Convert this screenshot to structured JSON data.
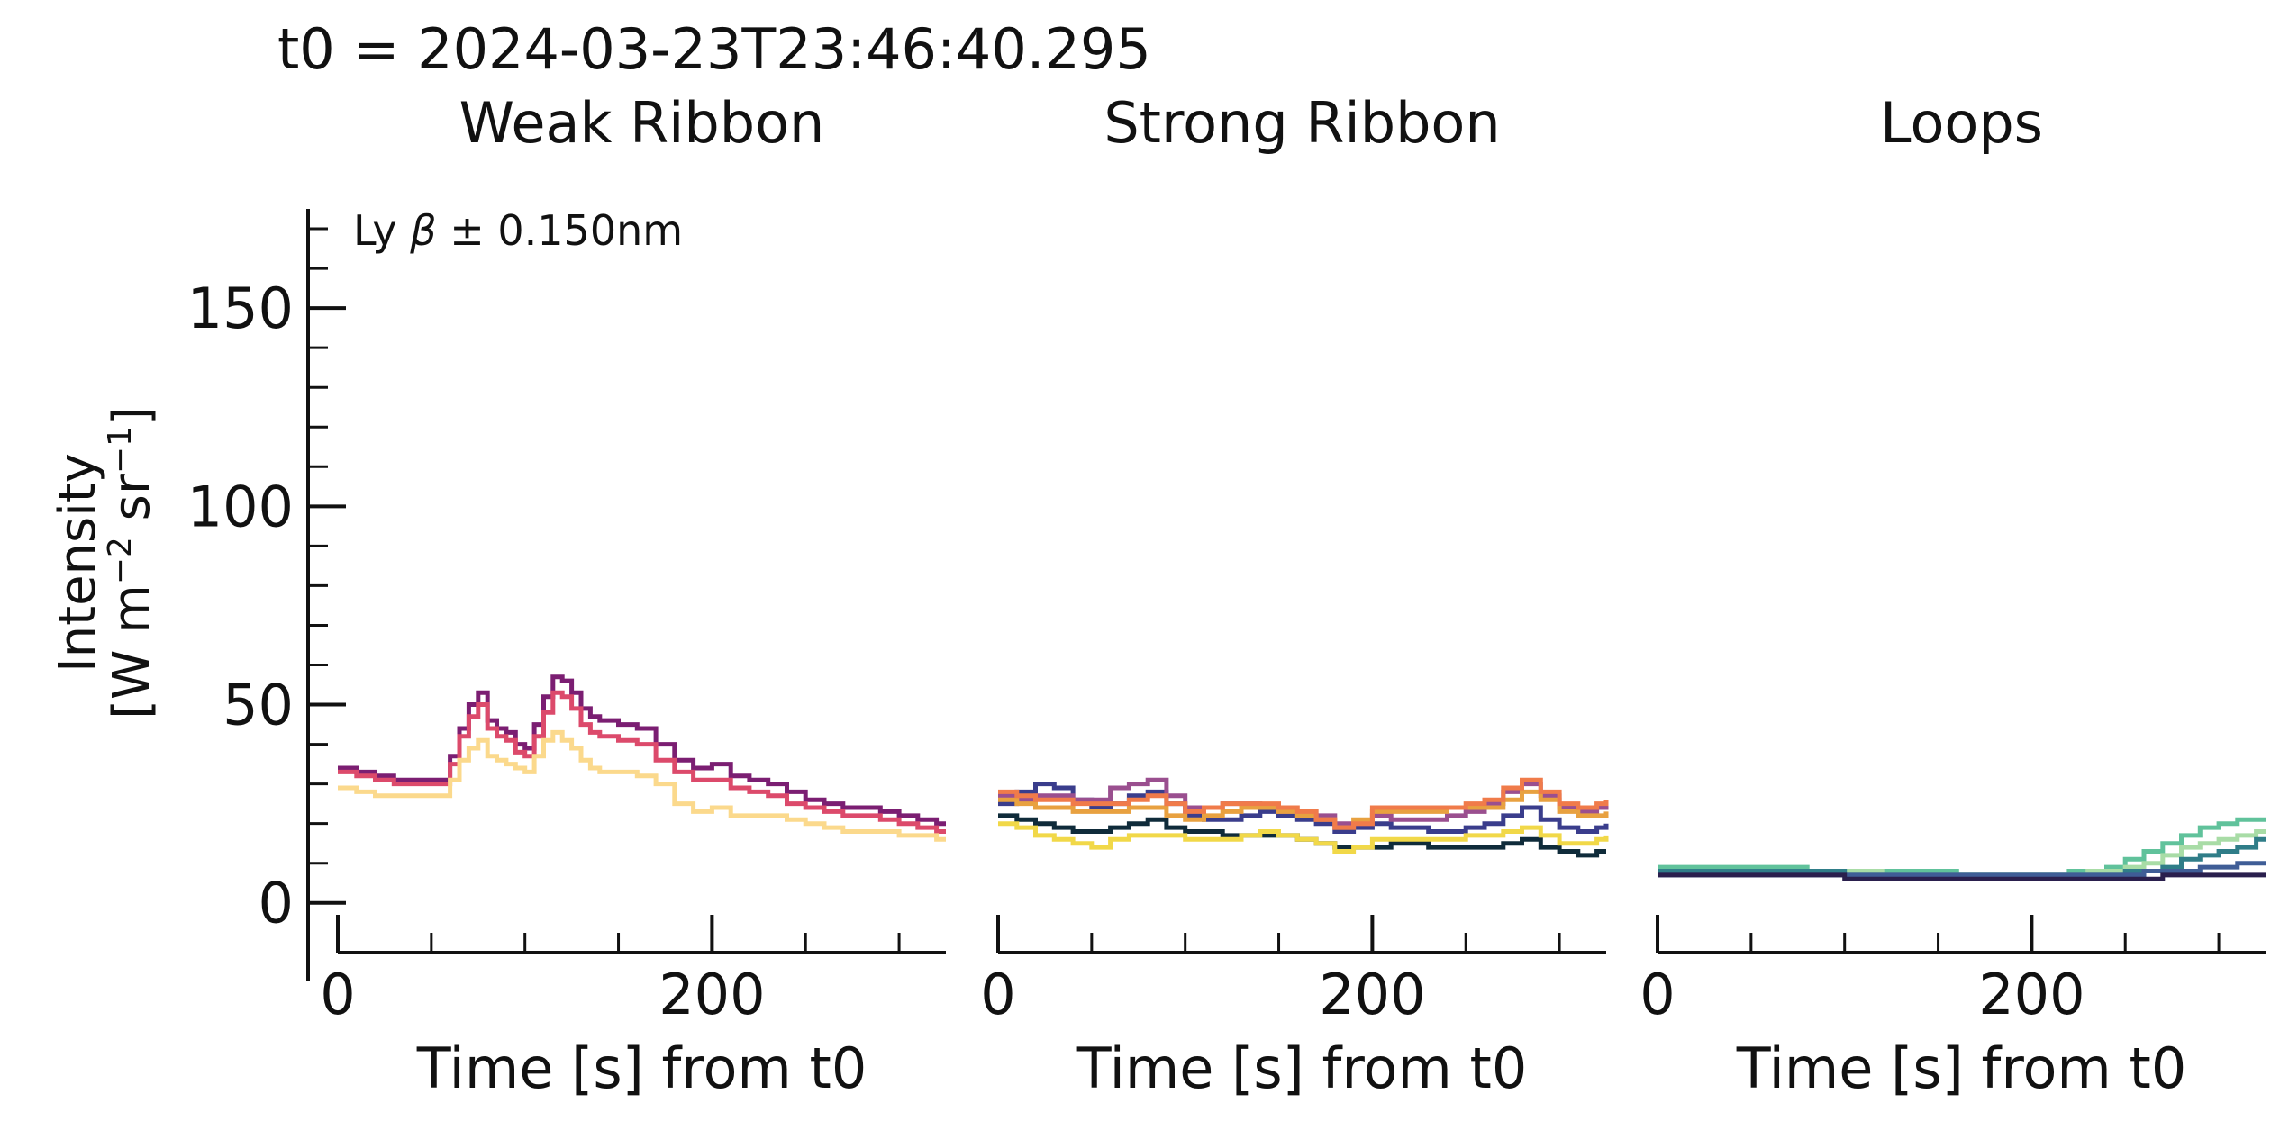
{
  "figure": {
    "title": "t0 = 2024-03-23T23:46:40.295",
    "ylabel_line1": "Intensity",
    "ylabel_line2_pre": "[W m",
    "ylabel_exp1": "−2",
    "ylabel_mid": " sr",
    "ylabel_exp2": "−1",
    "ylabel_post": "]",
    "annotation_pre": "Ly ",
    "annotation_beta": "β",
    "annotation_post": " ±  0.150nm"
  },
  "chart_data": [
    {
      "type": "line",
      "title": "Weak Ribbon",
      "xlabel": "Time [s] from t0",
      "ylabel": "Intensity [W m⁻² sr⁻¹]",
      "xlim": [
        0,
        325
      ],
      "ylim": [
        -13,
        175
      ],
      "xticks": [
        0,
        200
      ],
      "yticks": [
        0,
        50,
        100,
        150
      ],
      "grid": false,
      "x": [
        0,
        10,
        20,
        30,
        40,
        50,
        55,
        60,
        65,
        70,
        75,
        80,
        85,
        90,
        95,
        100,
        105,
        110,
        115,
        120,
        125,
        130,
        135,
        140,
        150,
        160,
        170,
        180,
        190,
        200,
        210,
        220,
        230,
        240,
        250,
        260,
        270,
        280,
        290,
        300,
        310,
        320,
        325
      ],
      "series": [
        {
          "color": "#7b1e72",
          "values": [
            34,
            33,
            32,
            31,
            31,
            31,
            31,
            37,
            44,
            50,
            53,
            46,
            44,
            43,
            40,
            39,
            45,
            52,
            57,
            56,
            53,
            49,
            47,
            46,
            45,
            44,
            40,
            36,
            34,
            35,
            32,
            31,
            30,
            28,
            26,
            25,
            24,
            24,
            23,
            22,
            21,
            20,
            20
          ]
        },
        {
          "color": "#dc4a6b",
          "values": [
            33,
            32,
            31,
            30,
            30,
            30,
            30,
            35,
            42,
            47,
            50,
            44,
            42,
            41,
            38,
            37,
            42,
            48,
            53,
            52,
            49,
            45,
            43,
            42,
            41,
            40,
            36,
            33,
            31,
            31,
            29,
            28,
            27,
            25,
            24,
            23,
            22,
            22,
            21,
            20,
            19,
            18,
            18
          ]
        },
        {
          "color": "#fbd98c",
          "values": [
            29,
            28,
            27,
            27,
            27,
            27,
            27,
            31,
            36,
            39,
            41,
            37,
            36,
            35,
            34,
            33,
            37,
            41,
            43,
            41,
            39,
            36,
            34,
            33,
            33,
            32,
            30,
            25,
            23,
            24,
            22,
            22,
            22,
            21,
            20,
            19,
            18,
            18,
            18,
            17,
            17,
            16,
            16
          ]
        }
      ]
    },
    {
      "type": "line",
      "title": "Strong Ribbon",
      "xlabel": "Time [s] from t0",
      "xlim": [
        0,
        325
      ],
      "ylim": [
        -13,
        175
      ],
      "xticks": [
        0,
        200
      ],
      "yticks": [
        0,
        50,
        100,
        150
      ],
      "grid": false,
      "x": [
        0,
        10,
        20,
        30,
        40,
        50,
        60,
        70,
        80,
        90,
        100,
        110,
        120,
        130,
        140,
        150,
        160,
        170,
        180,
        190,
        200,
        210,
        220,
        230,
        240,
        250,
        260,
        270,
        280,
        290,
        300,
        310,
        320,
        325
      ],
      "series": [
        {
          "color": "#0f2b3a",
          "values": [
            22,
            21,
            20,
            19,
            18,
            18,
            19,
            20,
            21,
            19,
            18,
            18,
            17,
            17,
            17,
            17,
            16,
            15,
            14,
            14,
            14,
            15,
            15,
            14,
            14,
            14,
            14,
            15,
            16,
            14,
            13,
            12,
            13,
            13
          ]
        },
        {
          "color": "#3a3d8c",
          "values": [
            25,
            28,
            30,
            29,
            26,
            24,
            25,
            27,
            28,
            25,
            22,
            21,
            21,
            22,
            23,
            22,
            21,
            20,
            18,
            19,
            20,
            19,
            19,
            18,
            18,
            19,
            20,
            22,
            24,
            21,
            19,
            18,
            19,
            20
          ]
        },
        {
          "color": "#9a4f8f",
          "values": [
            27,
            26,
            27,
            27,
            26,
            26,
            29,
            30,
            31,
            27,
            24,
            24,
            25,
            25,
            24,
            23,
            23,
            22,
            20,
            20,
            22,
            21,
            21,
            21,
            22,
            23,
            25,
            28,
            30,
            27,
            24,
            23,
            24,
            25
          ]
        },
        {
          "color": "#e8a140",
          "values": [
            26,
            25,
            24,
            24,
            23,
            23,
            23,
            24,
            24,
            22,
            21,
            22,
            23,
            24,
            24,
            23,
            22,
            21,
            19,
            21,
            23,
            23,
            23,
            23,
            24,
            24,
            24,
            26,
            28,
            26,
            23,
            22,
            22,
            23
          ]
        },
        {
          "color": "#f07b4a",
          "values": [
            28,
            27,
            26,
            26,
            25,
            25,
            25,
            26,
            27,
            25,
            23,
            24,
            25,
            25,
            25,
            24,
            23,
            21,
            19,
            20,
            24,
            24,
            24,
            24,
            24,
            25,
            26,
            29,
            31,
            28,
            25,
            24,
            25,
            26
          ]
        },
        {
          "color": "#f1d848",
          "values": [
            20,
            19,
            17,
            16,
            15,
            14,
            16,
            17,
            17,
            17,
            16,
            16,
            16,
            17,
            18,
            17,
            16,
            15,
            13,
            14,
            16,
            16,
            16,
            16,
            16,
            17,
            17,
            18,
            19,
            17,
            15,
            15,
            16,
            17
          ]
        }
      ]
    },
    {
      "type": "line",
      "title": "Loops",
      "xlabel": "Time [s] from t0",
      "xlim": [
        0,
        325
      ],
      "ylim": [
        -13,
        175
      ],
      "xticks": [
        0,
        200
      ],
      "yticks": [
        0,
        50,
        100,
        150
      ],
      "grid": false,
      "x": [
        0,
        20,
        40,
        60,
        80,
        100,
        120,
        140,
        160,
        180,
        200,
        210,
        220,
        230,
        240,
        250,
        260,
        270,
        280,
        290,
        300,
        310,
        320,
        325
      ],
      "series": [
        {
          "color": "#60c29b",
          "values": [
            9,
            9,
            9,
            9,
            8,
            8,
            8,
            8,
            7,
            7,
            7,
            7,
            8,
            8,
            9,
            11,
            13,
            15,
            17,
            19,
            20,
            21,
            21,
            21
          ]
        },
        {
          "color": "#a8dca6",
          "values": [
            8,
            8,
            8,
            8,
            8,
            8,
            7,
            7,
            7,
            7,
            7,
            7,
            7,
            8,
            8,
            9,
            10,
            12,
            14,
            15,
            16,
            17,
            18,
            18
          ]
        },
        {
          "color": "#2f7d88",
          "values": [
            8,
            8,
            8,
            8,
            8,
            7,
            7,
            7,
            7,
            7,
            7,
            7,
            7,
            7,
            7,
            8,
            8,
            9,
            11,
            12,
            13,
            14,
            16,
            16
          ]
        },
        {
          "color": "#3f5d96",
          "values": [
            7,
            7,
            7,
            7,
            7,
            7,
            7,
            7,
            7,
            7,
            7,
            7,
            7,
            7,
            7,
            7,
            8,
            8,
            8,
            9,
            9,
            10,
            10,
            10
          ]
        },
        {
          "color": "#2a1f4d",
          "values": [
            7,
            7,
            7,
            7,
            7,
            6,
            6,
            6,
            6,
            6,
            6,
            6,
            6,
            6,
            6,
            6,
            6,
            7,
            7,
            7,
            7,
            7,
            7,
            7
          ]
        }
      ]
    }
  ]
}
